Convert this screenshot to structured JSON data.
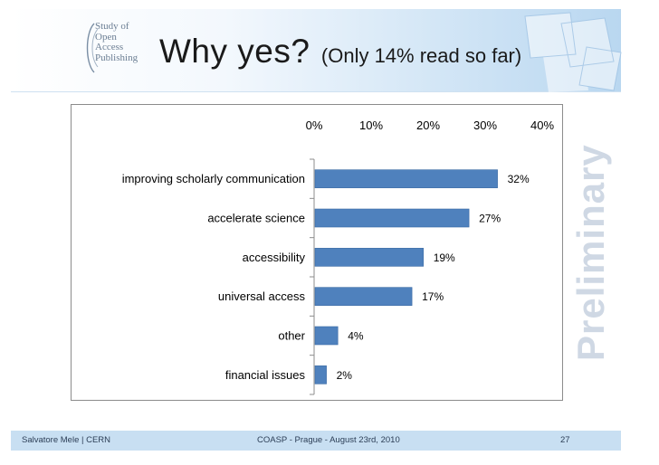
{
  "header": {
    "logo_lines": [
      "Study of",
      "Open",
      "Access",
      "Publishing"
    ],
    "title_main": "Why yes?",
    "title_sub": "(Only 14% read so far)"
  },
  "watermark": "Preliminary",
  "footer": {
    "author": "Salvatore Mele | CERN",
    "event": "COASP - Prague - August 23rd, 2010",
    "page_number": "27"
  },
  "colors": {
    "bar": "#4f81bd",
    "bar_edge": "#3a6aa3",
    "footer_bg": "#c8dff2",
    "watermark": "#cfd8e4"
  },
  "chart_data": {
    "type": "bar",
    "orientation": "horizontal",
    "categories": [
      "improving scholarly communication",
      "accelerate science",
      "accessibility",
      "universal access",
      "other",
      "financial issues"
    ],
    "values": [
      32,
      27,
      19,
      17,
      4,
      2
    ],
    "data_labels": [
      "32%",
      "27%",
      "19%",
      "17%",
      "4%",
      "2%"
    ],
    "xlim": [
      0,
      40
    ],
    "x_ticks": [
      "0%",
      "10%",
      "20%",
      "30%",
      "40%"
    ],
    "x_axis_position": "top",
    "grid": false,
    "legend": false
  }
}
